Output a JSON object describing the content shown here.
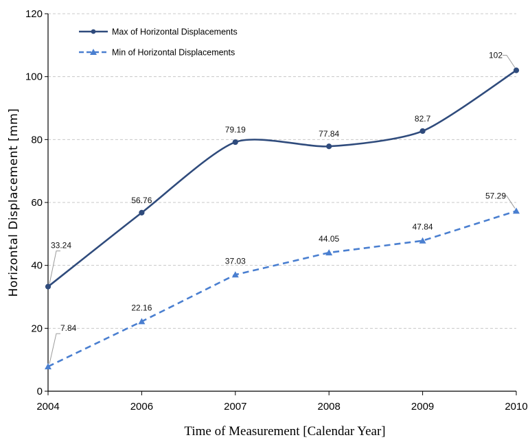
{
  "chart_data": {
    "type": "line",
    "title": "",
    "xlabel": "Time of Measurement [Calendar Year]",
    "ylabel": "Horizontal Displacement [mm]",
    "categories": [
      "2004",
      "2006",
      "2007",
      "2008",
      "2009",
      "2010"
    ],
    "ylim": [
      0,
      120
    ],
    "yticks": [
      0,
      20,
      40,
      60,
      80,
      100,
      120
    ],
    "grid": "horizontal dashed",
    "legend_position": "top-left",
    "series": [
      {
        "name": "Max of Horizontal Displacements",
        "values": [
          33.24,
          56.76,
          79.19,
          77.84,
          82.7,
          102
        ],
        "labels": [
          "33.24",
          "56.76",
          "79.19",
          "77.84",
          "82.7",
          "102"
        ],
        "color": "#2f4b7c",
        "line_style": "solid",
        "marker": "circle"
      },
      {
        "name": "Min of Horizontal Displacements",
        "values": [
          7.84,
          22.16,
          37.03,
          44.05,
          47.84,
          57.29
        ],
        "labels": [
          "7.84",
          "22.16",
          "37.03",
          "44.05",
          "47.84",
          "57.29"
        ],
        "color": "#4a7fd0",
        "line_style": "dashed",
        "marker": "triangle"
      }
    ]
  }
}
